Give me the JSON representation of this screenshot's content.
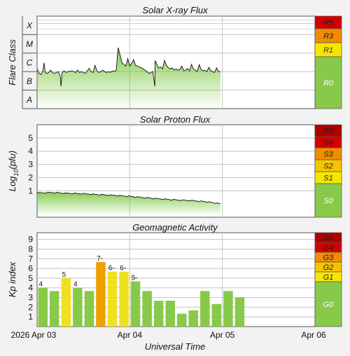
{
  "colors": {
    "background": "#f2f2f2",
    "plot_background": "#ffffff",
    "grid": "#c4c4c4",
    "trace": "#111111",
    "fill_green": "#7cc740",
    "scale_red": "#d40000",
    "scale_darkred": "#b00000",
    "scale_orange": "#f08c00",
    "scale_yellow": "#f5e600",
    "scale_green": "#88c94a",
    "kp_green": "#88c94a",
    "kp_yellow": "#f0e020",
    "kp_orange": "#f0a000"
  },
  "x_axis": {
    "label": "Universal Time",
    "ticks": [
      "2026 Apr 03",
      "Apr 04",
      "Apr 05",
      "Apr 06"
    ]
  },
  "chart_data": [
    {
      "type": "line",
      "title": "Solar X-ray Flux",
      "ylabel": "Flare Class",
      "class_labels": [
        "A",
        "B",
        "C",
        "M",
        "X"
      ],
      "y_scale": "log",
      "ylim": [
        1e-08,
        0.001
      ],
      "xlim_hours": [
        0,
        72
      ],
      "data_extent_hours": [
        0,
        47.5
      ],
      "series": [
        {
          "x_hours": [
            0,
            0.5,
            1,
            1.5,
            1.8,
            2.1,
            2.6,
            3,
            3.5,
            4,
            4.5,
            5,
            5.5,
            6,
            6.2,
            6.5,
            7,
            7.5,
            8,
            9,
            10,
            10.5,
            11,
            11.5,
            12,
            12.5,
            13,
            13.5,
            14,
            14.5,
            15,
            15.5,
            16,
            16.5,
            17,
            17.5,
            18,
            18.5,
            19,
            19.5,
            20,
            20.5,
            21,
            21.5,
            22,
            23,
            23.5,
            24,
            24.5,
            25,
            25.5,
            26,
            26.5,
            27,
            27.5,
            28,
            29,
            30,
            30.5,
            30.6,
            31,
            31.5,
            32,
            32.5,
            33,
            33.5,
            34,
            34.5,
            35,
            35.5,
            36,
            36.5,
            37,
            37.5,
            38,
            38.5,
            39,
            39.5,
            40,
            40.5,
            41,
            41.5,
            42,
            42.5,
            43,
            43.5,
            44,
            44.5,
            45,
            45.5,
            46,
            46.5,
            47,
            47.5
          ],
          "flux": [
            1.4e-06,
            8e-07,
            7e-07,
            1.1e-06,
            3e-06,
            9e-07,
            8e-07,
            9e-07,
            1.2e-06,
            9e-07,
            8e-07,
            9e-07,
            1e-06,
            6e-07,
            1.6e-07,
            9e-07,
            1.1e-06,
            9e-07,
            1e-06,
            1.1e-06,
            9e-07,
            1.2e-06,
            9e-07,
            1e-06,
            9e-07,
            8e-07,
            1.1e-06,
            1.5e-06,
            1e-06,
            9e-07,
            2.2e-06,
            1.1e-06,
            9e-07,
            1e-06,
            1.2e-06,
            1e-06,
            9e-07,
            1e-06,
            9e-07,
            1.1e-06,
            1e-06,
            1.2e-06,
            2e-05,
            8e-06,
            3e-06,
            2e-06,
            5e-06,
            2e-06,
            2.8e-06,
            4.5e-06,
            2.2e-06,
            2e-06,
            1.8e-06,
            1.6e-06,
            1.4e-06,
            1.2e-06,
            8e-07,
            1e-06,
            1.6e-07,
            4e-06,
            2.5e-06,
            1.6e-06,
            1.8e-06,
            1.4e-06,
            4e-06,
            2.2e-06,
            1.6e-06,
            1.4e-06,
            1.6e-06,
            1.2e-06,
            1.4e-06,
            1.2e-06,
            1.3e-06,
            2e-06,
            1.1e-06,
            1.2e-06,
            1.5e-06,
            1.1e-06,
            2.5e-06,
            1.4e-06,
            1.2e-06,
            1e-06,
            2.4e-06,
            1.3e-06,
            1.1e-06,
            1.2e-06,
            1e-06,
            1.7e-06,
            1.1e-06,
            1e-06,
            9e-07,
            1.6e-06,
            1e-06,
            1e-06
          ]
        }
      ],
      "scale": [
        {
          "label": "R5",
          "color": "#d40000"
        },
        {
          "label": "R3",
          "color": "#f08c00"
        },
        {
          "label": "R1",
          "color": "#f5e600"
        },
        {
          "label": "R0",
          "color": "#88c94a"
        }
      ]
    },
    {
      "type": "line",
      "title": "Solar Proton Flux",
      "ylabel": "Log10(pfu)",
      "yticks": [
        1,
        2,
        3,
        4,
        5
      ],
      "ylim": [
        -1,
        6
      ],
      "xlim_hours": [
        0,
        72
      ],
      "data_extent_hours": [
        0,
        47.5
      ],
      "series": [
        {
          "x_hours": [
            0,
            4,
            8,
            12,
            16,
            20,
            24,
            28,
            32,
            36,
            40,
            44,
            47.5
          ],
          "log10_pfu": [
            0.84,
            0.87,
            0.81,
            0.78,
            0.71,
            0.66,
            0.58,
            0.48,
            0.38,
            0.31,
            0.26,
            0.17,
            0.02
          ]
        }
      ],
      "scale": [
        {
          "label": "S5",
          "color": "#b00000"
        },
        {
          "label": "S4",
          "color": "#d40000"
        },
        {
          "label": "S3",
          "color": "#f08c00"
        },
        {
          "label": "S2",
          "color": "#f5c400"
        },
        {
          "label": "S1",
          "color": "#f5e600"
        },
        {
          "label": "S0",
          "color": "#88c94a"
        }
      ]
    },
    {
      "type": "bar",
      "title": "Geomagnetic Activity",
      "ylabel": "Kp index",
      "yticks": [
        1,
        2,
        3,
        4,
        5,
        6,
        7,
        8,
        9
      ],
      "ylim": [
        0,
        9.7
      ],
      "xlim_hours": [
        0,
        72
      ],
      "bar_hours": 3,
      "values": [
        4.0,
        3.67,
        5.0,
        4.0,
        3.67,
        6.67,
        5.67,
        5.67,
        4.67,
        3.67,
        2.67,
        2.67,
        1.33,
        1.67,
        3.67,
        2.33,
        3.67,
        3.0
      ],
      "data_labels": [
        "4",
        "",
        "5",
        "4",
        "",
        "7-",
        "6-",
        "6-",
        "5-",
        "",
        "",
        "",
        "",
        "",
        "",
        "",
        "",
        ""
      ],
      "bar_colors": [
        "#88c94a",
        "#88c94a",
        "#f0e020",
        "#88c94a",
        "#88c94a",
        "#f0a000",
        "#f0e020",
        "#f0e020",
        "#88c94a",
        "#88c94a",
        "#88c94a",
        "#88c94a",
        "#88c94a",
        "#88c94a",
        "#88c94a",
        "#88c94a",
        "#88c94a",
        "#88c94a"
      ],
      "scale": [
        {
          "label": "G5",
          "color": "#b00000"
        },
        {
          "label": "G4",
          "color": "#d40000"
        },
        {
          "label": "G3",
          "color": "#f08c00"
        },
        {
          "label": "G2",
          "color": "#f5c400"
        },
        {
          "label": "G1",
          "color": "#f5e600"
        },
        {
          "label": "G0",
          "color": "#88c94a"
        }
      ]
    }
  ]
}
